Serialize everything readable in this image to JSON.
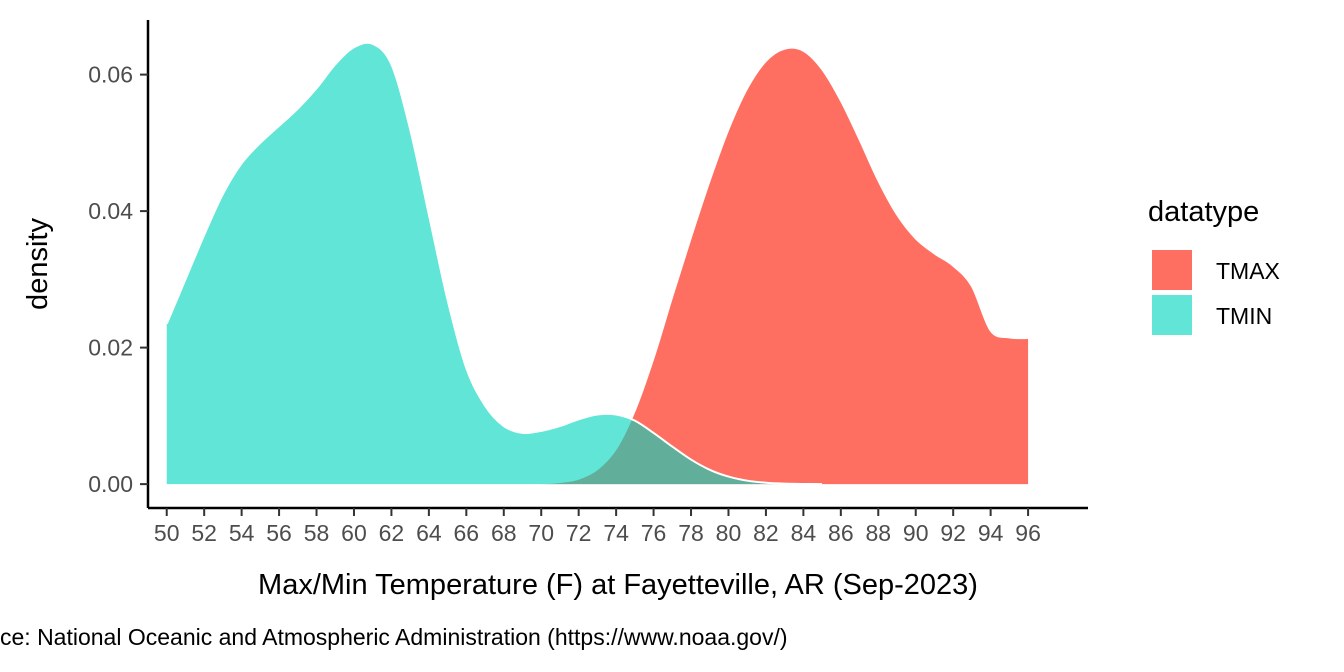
{
  "chart_data": {
    "type": "area",
    "subtype": "density",
    "xlabel": "Max/Min Temperature (F) at Fayetteville, AR (Sep-2023)",
    "ylabel": "density",
    "caption": "ce: National Oceanic and Atmospheric Administration (https://www.noaa.gov/)",
    "xlim": [
      49,
      99.2
    ],
    "ylim": [
      -0.0035,
      0.068
    ],
    "x_ticks": [
      50,
      52,
      54,
      56,
      58,
      60,
      62,
      64,
      66,
      68,
      70,
      72,
      74,
      76,
      78,
      80,
      82,
      84,
      86,
      88,
      90,
      92,
      94,
      96
    ],
    "y_ticks": [
      0.0,
      0.02,
      0.04,
      0.06
    ],
    "y_tick_labels": [
      "0.00",
      "0.02",
      "0.04",
      "0.06"
    ],
    "legend": {
      "title": "datatype",
      "position": "right",
      "entries": [
        "TMAX",
        "TMIN"
      ]
    },
    "grid": false,
    "series": [
      {
        "name": "TMIN",
        "color": "#00d5bd",
        "opacity": 0.62,
        "points": [
          [
            50,
            0.0235
          ],
          [
            51,
            0.03
          ],
          [
            52,
            0.0365
          ],
          [
            53,
            0.0425
          ],
          [
            54,
            0.047
          ],
          [
            55,
            0.05
          ],
          [
            56,
            0.0525
          ],
          [
            57,
            0.055
          ],
          [
            58,
            0.058
          ],
          [
            59,
            0.0615
          ],
          [
            60,
            0.064
          ],
          [
            61,
            0.0645
          ],
          [
            62,
            0.0615
          ],
          [
            63,
            0.052
          ],
          [
            64,
            0.0395
          ],
          [
            65,
            0.027
          ],
          [
            66,
            0.017
          ],
          [
            67,
            0.0115
          ],
          [
            68,
            0.0085
          ],
          [
            69,
            0.0075
          ],
          [
            70,
            0.0078
          ],
          [
            71,
            0.0085
          ],
          [
            72,
            0.0095
          ],
          [
            73,
            0.0102
          ],
          [
            74,
            0.0102
          ],
          [
            75,
            0.0093
          ],
          [
            76,
            0.0075
          ],
          [
            77,
            0.0055
          ],
          [
            78,
            0.0036
          ],
          [
            79,
            0.0021
          ],
          [
            80,
            0.0011
          ],
          [
            81,
            0.0005
          ],
          [
            82,
            0.0002
          ],
          [
            83,
            7e-05
          ],
          [
            84,
            2e-05
          ],
          [
            85,
            0
          ]
        ]
      },
      {
        "name": "TMAX",
        "color": "#ff6f61",
        "opacity": 1,
        "points": [
          [
            68,
            0
          ],
          [
            69,
            3e-05
          ],
          [
            70,
            0.0001
          ],
          [
            71,
            0.0003
          ],
          [
            72,
            0.0008
          ],
          [
            73,
            0.0022
          ],
          [
            74,
            0.0052
          ],
          [
            75,
            0.0108
          ],
          [
            76,
            0.0185
          ],
          [
            77,
            0.0275
          ],
          [
            78,
            0.0362
          ],
          [
            79,
            0.0445
          ],
          [
            80,
            0.052
          ],
          [
            81,
            0.058
          ],
          [
            82,
            0.062
          ],
          [
            83,
            0.0638
          ],
          [
            84,
            0.0635
          ],
          [
            85,
            0.0608
          ],
          [
            86,
            0.0562
          ],
          [
            87,
            0.0505
          ],
          [
            88,
            0.0445
          ],
          [
            89,
            0.0395
          ],
          [
            90,
            0.036
          ],
          [
            91,
            0.0338
          ],
          [
            92,
            0.032
          ],
          [
            93,
            0.029
          ],
          [
            94,
            0.0225
          ],
          [
            95,
            0.0215
          ],
          [
            96,
            0.0214
          ]
        ]
      }
    ]
  }
}
